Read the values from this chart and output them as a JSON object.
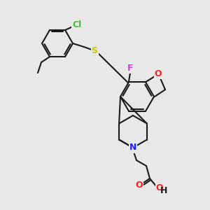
{
  "bg_color": "#e8e8e8",
  "bond_color": "#1a1a1a",
  "atom_colors": {
    "Cl": "#40c040",
    "S": "#c8c800",
    "F": "#cc44cc",
    "O": "#ff2020",
    "N": "#2020ff",
    "C": "#1a1a1a"
  },
  "bond_width": 1.5,
  "font_size": 9
}
